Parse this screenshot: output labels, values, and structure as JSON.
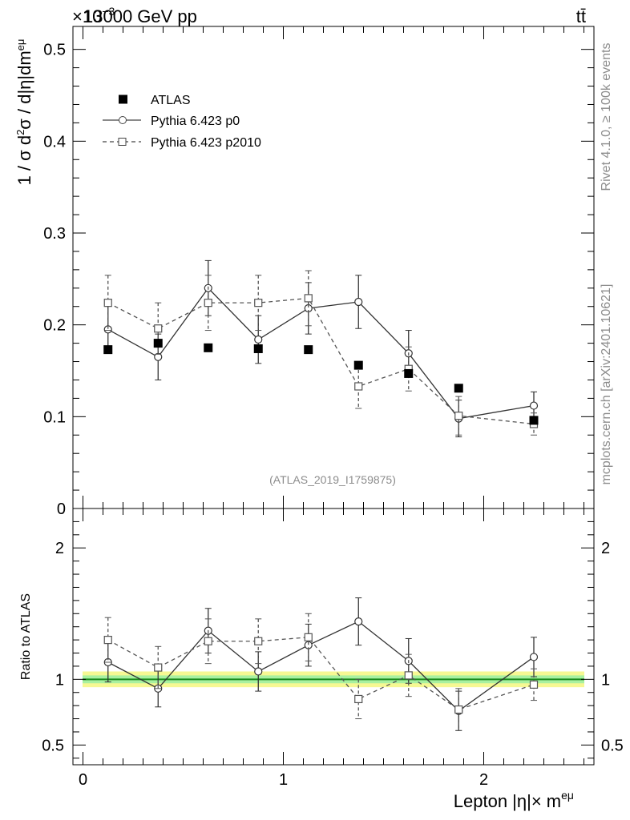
{
  "header": {
    "exponent_label": "×10",
    "exponent_power": "−3",
    "energy_label": "13000 GeV pp",
    "process_label": "tt̄"
  },
  "side_labels": {
    "rivet": "Rivet 4.1.0, ≥ 100k events",
    "site": "mcplots.cern.ch [arXiv:2401.10621]"
  },
  "chart_data": [
    {
      "type": "scatter",
      "panel": "main",
      "title": "",
      "xlabel": "Lepton |η|× m",
      "xlabel_sup": "eμ",
      "ylabel": "1 / σ  d",
      "ylabel_sup1": "2",
      "ylabel_mid": "σ / d|η|dm",
      "ylabel_sup2": "eμ",
      "analysis_tag": "(ATLAS_2019_I1759875)",
      "xlim": [
        -0.05,
        2.55
      ],
      "ylim": [
        0,
        0.525
      ],
      "y_scale_note": "values ×10^-3",
      "x_ticks": [
        "0",
        "1",
        "2"
      ],
      "y_ticks": [
        "0",
        "0.1",
        "0.2",
        "0.3",
        "0.4",
        "0.5"
      ],
      "legend_position": "top-left",
      "series": [
        {
          "name": "ATLAS",
          "style": "data",
          "x": [
            0.125,
            0.375,
            0.625,
            0.875,
            1.125,
            1.375,
            1.625,
            1.875,
            2.25
          ],
          "values": [
            0.173,
            0.18,
            0.175,
            0.174,
            0.173,
            0.156,
            0.147,
            0.131,
            0.096
          ],
          "errors": [
            0,
            0,
            0,
            0,
            0,
            0,
            0,
            0,
            0
          ]
        },
        {
          "name": "Pythia 6.423 p0",
          "style": "solid-circle",
          "x": [
            0.125,
            0.375,
            0.625,
            0.875,
            1.125,
            1.375,
            1.625,
            1.875,
            2.25
          ],
          "values": [
            0.195,
            0.165,
            0.24,
            0.184,
            0.218,
            0.225,
            0.169,
            0.098,
            0.112
          ],
          "errors": [
            0.026,
            0.025,
            0.03,
            0.026,
            0.028,
            0.029,
            0.025,
            0.02,
            0.015
          ]
        },
        {
          "name": "Pythia 6.423 p2010",
          "style": "dashed-square",
          "x": [
            0.125,
            0.375,
            0.625,
            0.875,
            1.125,
            1.375,
            1.625,
            1.875,
            2.25
          ],
          "values": [
            0.224,
            0.196,
            0.224,
            0.224,
            0.229,
            0.133,
            0.152,
            0.101,
            0.092
          ],
          "errors": [
            0.03,
            0.028,
            0.03,
            0.03,
            0.03,
            0.024,
            0.024,
            0.021,
            0.012
          ]
        }
      ]
    },
    {
      "type": "scatter",
      "panel": "ratio",
      "ylabel": "Ratio to ATLAS",
      "xlim": [
        -0.05,
        2.55
      ],
      "ylim": [
        0.35,
        2.3
      ],
      "y_ticks": [
        "0.5",
        "1",
        "2"
      ],
      "band_outer": 0.06,
      "band_inner": 0.03,
      "series": [
        {
          "name": "Pythia 6.423 p0",
          "style": "solid-circle",
          "x": [
            0.125,
            0.375,
            0.625,
            0.875,
            1.125,
            1.375,
            1.625,
            1.875,
            2.25
          ],
          "values": [
            1.13,
            0.93,
            1.37,
            1.06,
            1.26,
            1.44,
            1.14,
            0.76,
            1.17
          ],
          "errors": [
            0.15,
            0.14,
            0.17,
            0.15,
            0.16,
            0.18,
            0.17,
            0.15,
            0.15
          ]
        },
        {
          "name": "Pythia 6.423 p2010",
          "style": "dashed-square",
          "x": [
            0.125,
            0.375,
            0.625,
            0.875,
            1.125,
            1.375,
            1.625,
            1.875,
            2.25
          ],
          "values": [
            1.3,
            1.09,
            1.29,
            1.29,
            1.32,
            0.85,
            1.03,
            0.77,
            0.96
          ],
          "errors": [
            0.17,
            0.16,
            0.17,
            0.17,
            0.18,
            0.15,
            0.16,
            0.16,
            0.12
          ]
        }
      ]
    }
  ]
}
